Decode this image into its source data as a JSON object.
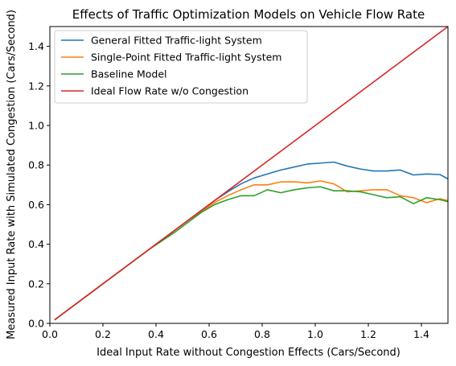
{
  "chart_data": {
    "type": "line",
    "title": "Effects of Traffic Optimization Models on Vehicle Flow Rate",
    "xlabel": "Ideal Input Rate without Congestion Effects (Cars/Second)",
    "ylabel": "Measured Input Rate with Simulated Congestion (Cars/Second)",
    "xlim": [
      0.0,
      1.5
    ],
    "ylim": [
      0.0,
      1.5
    ],
    "xticks": [
      "0.0",
      "0.2",
      "0.4",
      "0.6",
      "0.8",
      "1.0",
      "1.2",
      "1.4"
    ],
    "yticks": [
      "0.0",
      "0.2",
      "0.4",
      "0.6",
      "0.8",
      "1.0",
      "1.2",
      "1.4"
    ],
    "grid": false,
    "legend_position": "top-left",
    "series": [
      {
        "name": "General Fitted Traffic-light System",
        "color": "#1f77b4",
        "x": [
          0.02,
          0.07,
          0.12,
          0.17,
          0.22,
          0.27,
          0.32,
          0.37,
          0.42,
          0.47,
          0.52,
          0.57,
          0.62,
          0.67,
          0.72,
          0.77,
          0.82,
          0.87,
          0.92,
          0.97,
          1.02,
          1.07,
          1.12,
          1.17,
          1.22,
          1.27,
          1.32,
          1.37,
          1.42,
          1.47,
          1.5
        ],
        "y": [
          0.02,
          0.07,
          0.12,
          0.17,
          0.22,
          0.27,
          0.32,
          0.37,
          0.42,
          0.47,
          0.52,
          0.57,
          0.62,
          0.665,
          0.705,
          0.735,
          0.755,
          0.775,
          0.79,
          0.805,
          0.81,
          0.815,
          0.795,
          0.78,
          0.77,
          0.77,
          0.775,
          0.75,
          0.755,
          0.752,
          0.73
        ]
      },
      {
        "name": "Single-Point Fitted Traffic-light System",
        "color": "#ff7f0e",
        "x": [
          0.02,
          0.07,
          0.12,
          0.17,
          0.22,
          0.27,
          0.32,
          0.37,
          0.42,
          0.47,
          0.52,
          0.57,
          0.62,
          0.67,
          0.72,
          0.77,
          0.82,
          0.87,
          0.92,
          0.97,
          1.02,
          1.07,
          1.12,
          1.17,
          1.22,
          1.27,
          1.32,
          1.37,
          1.42,
          1.47,
          1.5
        ],
        "y": [
          0.02,
          0.07,
          0.12,
          0.17,
          0.22,
          0.27,
          0.32,
          0.37,
          0.42,
          0.47,
          0.52,
          0.565,
          0.61,
          0.645,
          0.675,
          0.7,
          0.7,
          0.715,
          0.715,
          0.71,
          0.72,
          0.705,
          0.665,
          0.67,
          0.675,
          0.675,
          0.645,
          0.635,
          0.61,
          0.63,
          0.62
        ]
      },
      {
        "name": "Baseline Model",
        "color": "#2ca02c",
        "x": [
          0.02,
          0.07,
          0.12,
          0.17,
          0.22,
          0.27,
          0.32,
          0.37,
          0.42,
          0.47,
          0.52,
          0.57,
          0.62,
          0.67,
          0.72,
          0.77,
          0.82,
          0.87,
          0.92,
          0.97,
          1.02,
          1.07,
          1.12,
          1.17,
          1.22,
          1.27,
          1.32,
          1.37,
          1.42,
          1.47,
          1.5
        ],
        "y": [
          0.02,
          0.07,
          0.12,
          0.17,
          0.22,
          0.27,
          0.32,
          0.37,
          0.415,
          0.46,
          0.51,
          0.56,
          0.6,
          0.625,
          0.645,
          0.645,
          0.675,
          0.66,
          0.675,
          0.685,
          0.69,
          0.67,
          0.67,
          0.665,
          0.65,
          0.635,
          0.64,
          0.605,
          0.635,
          0.625,
          0.615
        ]
      },
      {
        "name": "Ideal Flow Rate w/o Congestion",
        "color": "#d62728",
        "x": [
          0.02,
          1.5
        ],
        "y": [
          0.02,
          1.5
        ]
      }
    ]
  }
}
